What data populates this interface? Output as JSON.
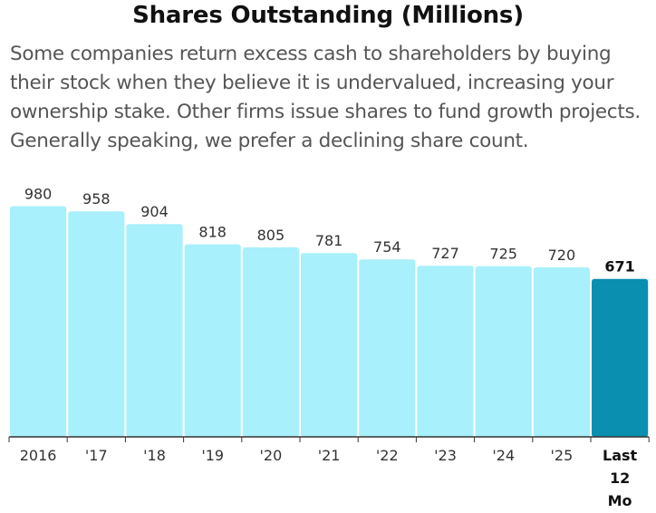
{
  "title": "Shares Outstanding (Millions)",
  "subtitle": "Some companies return excess cash to shareholders by buying their stock when they believe it is undervalued, increasing your ownership stake. Other firms issue shares to fund growth projects. Generally speaking, we prefer a declining share count.",
  "colors": {
    "bar": "#a8f0fb",
    "highlight": "#0a8fb0",
    "axis": "#333333"
  },
  "chart_data": {
    "type": "bar",
    "title": "Shares Outstanding (Millions)",
    "xlabel": "",
    "ylabel": "",
    "ylim": [
      0,
      1000
    ],
    "grid": false,
    "categories": [
      "2016",
      "'17",
      "'18",
      "'19",
      "'20",
      "'21",
      "'22",
      "'23",
      "'24",
      "'25",
      "Last 12 Mo"
    ],
    "category_lines": [
      [
        "2016"
      ],
      [
        "'17"
      ],
      [
        "'18"
      ],
      [
        "'19"
      ],
      [
        "'20"
      ],
      [
        "'21"
      ],
      [
        "'22"
      ],
      [
        "'23"
      ],
      [
        "'24"
      ],
      [
        "'25"
      ],
      [
        "Last",
        "12",
        "Mo"
      ]
    ],
    "values": [
      980,
      958,
      904,
      818,
      805,
      781,
      754,
      727,
      725,
      720,
      671
    ],
    "highlight_index": 10
  }
}
